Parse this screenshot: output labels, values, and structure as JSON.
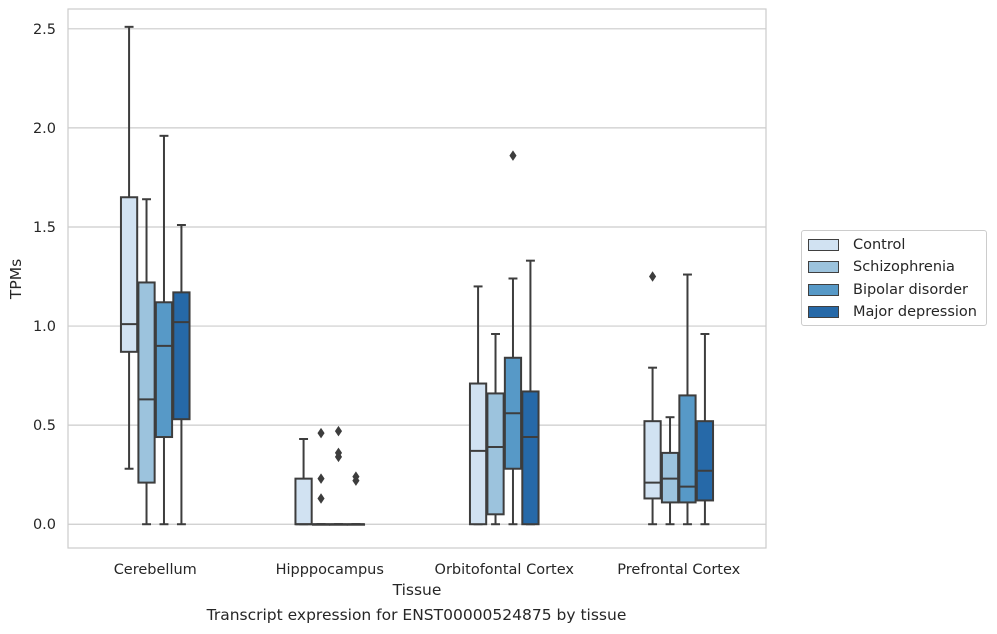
{
  "caption": "Transcript expression for ENST00000524875 by tissue",
  "chart_data": {
    "type": "box",
    "xlabel": "Tissue",
    "ylabel": "TPMs",
    "categories": [
      "Cerebellum",
      "Hipppocampus",
      "Orbitofontal Cortex",
      "Prefrontal Cortex"
    ],
    "ylim": [
      -0.12,
      2.6
    ],
    "yticks": [
      "0.0",
      "0.5",
      "1.0",
      "1.5",
      "2.0",
      "2.5"
    ],
    "grid": "horizontal",
    "legend_position": "right",
    "series": [
      {
        "name": "Control",
        "color": "#d1e2f2",
        "boxes": [
          {
            "whislo": 0.28,
            "q1": 0.87,
            "med": 1.01,
            "q3": 1.65,
            "whishi": 2.51,
            "fliers": []
          },
          {
            "whislo": 0.0,
            "q1": 0.0,
            "med": 0.0,
            "q3": 0.23,
            "whishi": 0.43,
            "fliers": []
          },
          {
            "whislo": 0.0,
            "q1": 0.0,
            "med": 0.37,
            "q3": 0.71,
            "whishi": 1.2,
            "fliers": []
          },
          {
            "whislo": 0.0,
            "q1": 0.13,
            "med": 0.21,
            "q3": 0.52,
            "whishi": 0.79,
            "fliers": [
              1.25
            ]
          }
        ]
      },
      {
        "name": "Schizophrenia",
        "color": "#9cc3dd",
        "boxes": [
          {
            "whislo": 0.0,
            "q1": 0.21,
            "med": 0.63,
            "q3": 1.22,
            "whishi": 1.64,
            "fliers": []
          },
          {
            "whislo": 0.0,
            "q1": 0.0,
            "med": 0.0,
            "q3": 0.0,
            "whishi": 0.0,
            "fliers": [
              0.13,
              0.23,
              0.46
            ]
          },
          {
            "whislo": 0.0,
            "q1": 0.05,
            "med": 0.39,
            "q3": 0.66,
            "whishi": 0.96,
            "fliers": []
          },
          {
            "whislo": 0.0,
            "q1": 0.11,
            "med": 0.23,
            "q3": 0.36,
            "whishi": 0.54,
            "fliers": []
          }
        ]
      },
      {
        "name": "Bipolar disorder",
        "color": "#5799c7",
        "boxes": [
          {
            "whislo": 0.0,
            "q1": 0.44,
            "med": 0.9,
            "q3": 1.12,
            "whishi": 1.96,
            "fliers": []
          },
          {
            "whislo": 0.0,
            "q1": 0.0,
            "med": 0.0,
            "q3": 0.0,
            "whishi": 0.0,
            "fliers": [
              0.34,
              0.36,
              0.47
            ]
          },
          {
            "whislo": 0.0,
            "q1": 0.28,
            "med": 0.56,
            "q3": 0.84,
            "whishi": 1.24,
            "fliers": [
              1.86
            ]
          },
          {
            "whislo": 0.0,
            "q1": 0.11,
            "med": 0.19,
            "q3": 0.65,
            "whishi": 1.26,
            "fliers": []
          }
        ]
      },
      {
        "name": "Major depression",
        "color": "#2669a8",
        "boxes": [
          {
            "whislo": 0.0,
            "q1": 0.53,
            "med": 1.02,
            "q3": 1.17,
            "whishi": 1.51,
            "fliers": []
          },
          {
            "whislo": 0.0,
            "q1": 0.0,
            "med": 0.0,
            "q3": 0.0,
            "whishi": 0.0,
            "fliers": [
              0.22,
              0.24
            ]
          },
          {
            "whislo": 0.0,
            "q1": 0.0,
            "med": 0.44,
            "q3": 0.67,
            "whishi": 1.33,
            "fliers": []
          },
          {
            "whislo": 0.0,
            "q1": 0.12,
            "med": 0.27,
            "q3": 0.52,
            "whishi": 0.96,
            "fliers": []
          }
        ]
      }
    ]
  }
}
